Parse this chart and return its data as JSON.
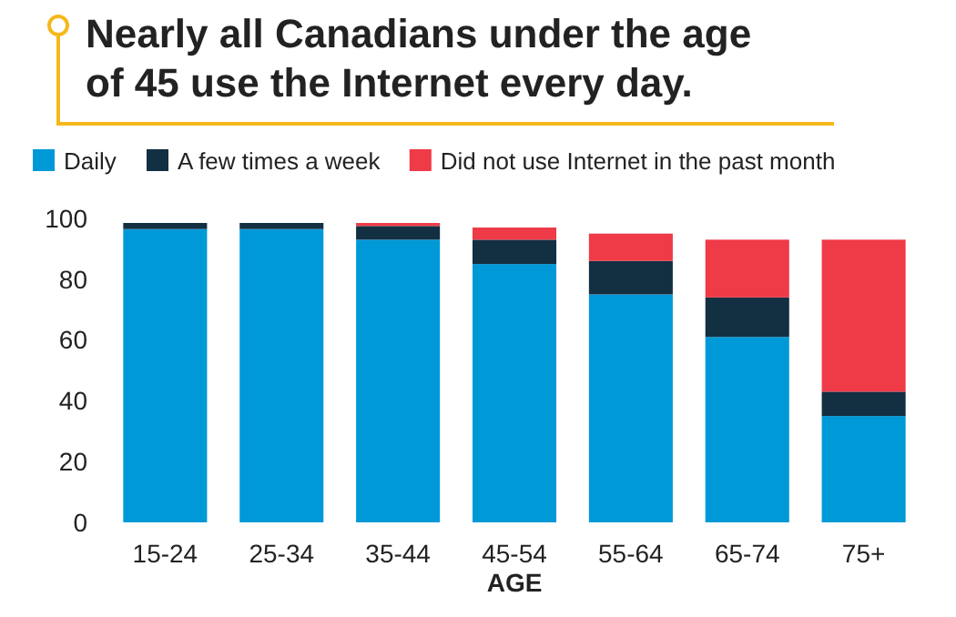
{
  "chart_data": {
    "type": "bar",
    "stacked": true,
    "title": "Nearly all Canadians under the age of 45 use the Internet every day.",
    "xlabel": "AGE",
    "categories": [
      "15-24",
      "25-34",
      "35-44",
      "45-54",
      "55-64",
      "65-74",
      "75+"
    ],
    "series": [
      {
        "name": "Daily",
        "color": "#0099d8",
        "values": [
          96.5,
          96.5,
          93,
          85,
          75,
          61,
          35
        ]
      },
      {
        "name": "A few times a week",
        "color": "#132f42",
        "values": [
          2,
          2,
          4.5,
          8,
          11,
          13,
          8
        ]
      },
      {
        "name": "Did not use Internet in the past month",
        "color": "#ef3a47",
        "values": [
          0,
          0,
          1,
          4,
          9,
          19,
          50
        ]
      }
    ],
    "ylim": [
      0,
      100
    ],
    "yticks": [
      0,
      20,
      40,
      60,
      80,
      100
    ],
    "grid": false,
    "legend": "top"
  }
}
